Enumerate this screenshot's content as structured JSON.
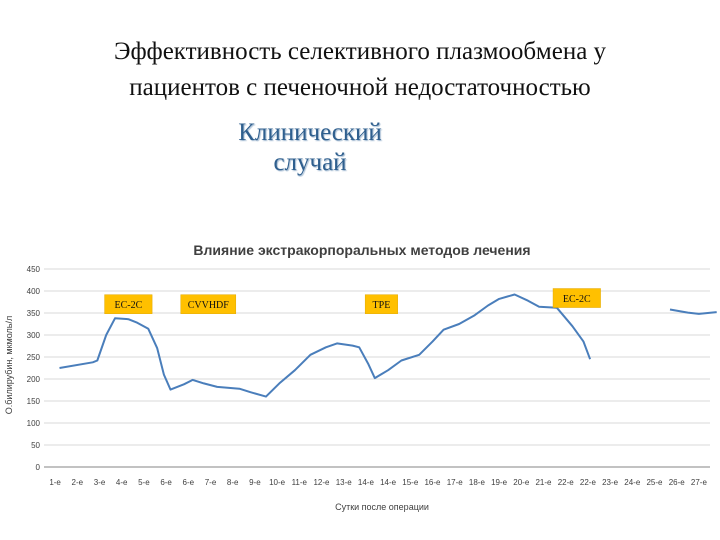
{
  "slide": {
    "title_line1": "Эффективность селективного плазмообмена у",
    "title_line2": "пациентов с печеночной недостаточностью",
    "subtitle_line1": "Клинический",
    "subtitle_line2": "случай"
  },
  "colors": {
    "series": "#4a7ebb",
    "annotation_fill": "#ffc000",
    "grid": "#d9d9d9",
    "axis": "#868686"
  },
  "chart_data": {
    "type": "line",
    "title": "Влияние экстракорпоральных методов лечения",
    "xlabel": "Сутки после операции",
    "ylabel": "О.билирубин, мкмоль/л",
    "ylim": [
      0,
      450
    ],
    "yticks": [
      0,
      50,
      100,
      150,
      200,
      250,
      300,
      350,
      400,
      450
    ],
    "grid": true,
    "categories": [
      "1-е",
      "2-е",
      "3-е",
      "4-е",
      "5-е",
      "6-е",
      "6-е",
      "7-е",
      "8-е",
      "9-е",
      "10-е",
      "11-е",
      "12-е",
      "13-е",
      "14-е",
      "14-е",
      "15-е",
      "16-е",
      "17-е",
      "18-е",
      "19-е",
      "20-е",
      "21-е",
      "22-е",
      "22-е",
      "23-е",
      "24-е",
      "25-е",
      "26-е",
      "27-е"
    ],
    "series": [
      {
        "points": [
          [
            0.7,
            225
          ],
          [
            2.2,
            238
          ],
          [
            2.4,
            242
          ],
          [
            2.8,
            300
          ],
          [
            3.2,
            338
          ],
          [
            3.8,
            336
          ],
          [
            4.2,
            328
          ],
          [
            4.7,
            314
          ],
          [
            5.1,
            270
          ],
          [
            5.4,
            210
          ],
          [
            5.7,
            176
          ],
          [
            6.3,
            188
          ],
          [
            6.7,
            198
          ],
          [
            7.2,
            190
          ],
          [
            7.8,
            182
          ],
          [
            8.8,
            178
          ],
          [
            9.3,
            170
          ],
          [
            10.0,
            160
          ],
          [
            10.6,
            190
          ],
          [
            11.3,
            220
          ],
          [
            12.0,
            255
          ],
          [
            12.7,
            272
          ],
          [
            13.2,
            281
          ],
          [
            13.9,
            276
          ],
          [
            14.2,
            272
          ],
          [
            14.6,
            235
          ],
          [
            14.9,
            202
          ],
          [
            15.5,
            220
          ],
          [
            16.1,
            242
          ],
          [
            16.9,
            255
          ],
          [
            17.5,
            285
          ],
          [
            18.0,
            312
          ],
          [
            18.7,
            325
          ],
          [
            19.4,
            345
          ],
          [
            20.0,
            367
          ],
          [
            20.5,
            382
          ],
          [
            21.2,
            392
          ],
          [
            21.8,
            378
          ],
          [
            22.3,
            364
          ],
          [
            23.1,
            362
          ],
          [
            23.8,
            320
          ],
          [
            24.3,
            285
          ],
          [
            24.6,
            245
          ]
        ]
      },
      {
        "points": [
          [
            28.2,
            358
          ],
          [
            29.0,
            351
          ],
          [
            29.5,
            348
          ],
          [
            30.3,
            352
          ]
        ]
      }
    ],
    "annotations": [
      {
        "label": "EC-2C",
        "x": 3.8,
        "y": 370
      },
      {
        "label": "CVVHDF",
        "x": 7.4,
        "y": 370
      },
      {
        "label": "TPE",
        "x": 15.2,
        "y": 370
      },
      {
        "label": "EC-2C",
        "x": 24.0,
        "y": 384
      }
    ]
  }
}
